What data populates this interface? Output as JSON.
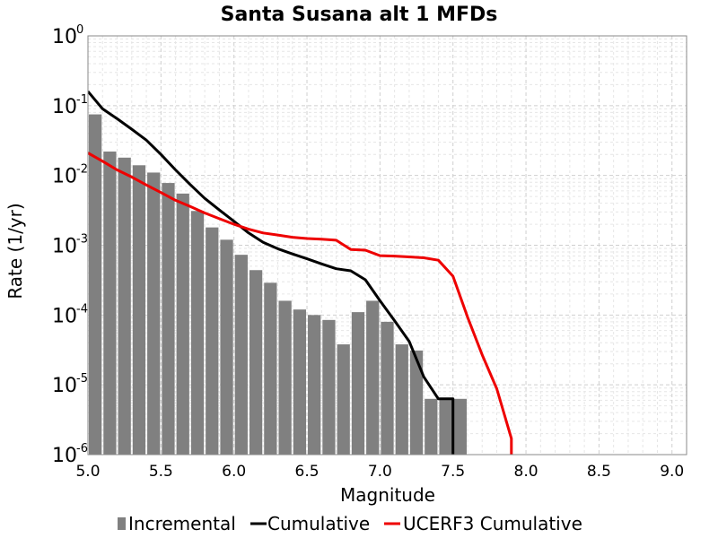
{
  "chart_data": {
    "type": "bar",
    "title": "Santa Susana alt 1 MFDs",
    "xlabel": "Magnitude",
    "ylabel": "Rate (1/yr)",
    "xlim": [
      5.0,
      9.1
    ],
    "ylim": [
      1e-06,
      1
    ],
    "y_scale": "log",
    "grid": true,
    "legend_position": "bottom",
    "x_ticks": [
      "5.0",
      "5.5",
      "6.0",
      "6.5",
      "7.0",
      "7.5",
      "8.0",
      "8.5",
      "9.0"
    ],
    "y_ticks": [
      {
        "base": "10",
        "exp": "0"
      },
      {
        "base": "10",
        "exp": "-1"
      },
      {
        "base": "10",
        "exp": "-2"
      },
      {
        "base": "10",
        "exp": "-3"
      },
      {
        "base": "10",
        "exp": "-4"
      },
      {
        "base": "10",
        "exp": "-5"
      },
      {
        "base": "10",
        "exp": "-6"
      }
    ],
    "series": [
      {
        "name": "Incremental",
        "kind": "bar",
        "color": "#808080",
        "bin_width": 0.1,
        "x": [
          5.05,
          5.15,
          5.25,
          5.35,
          5.45,
          5.55,
          5.65,
          5.75,
          5.85,
          5.95,
          6.05,
          6.15,
          6.25,
          6.35,
          6.45,
          6.55,
          6.65,
          6.75,
          6.85,
          6.95,
          7.05,
          7.15,
          7.25,
          7.35,
          7.45,
          7.55
        ],
        "y": [
          0.075,
          0.022,
          0.018,
          0.014,
          0.011,
          0.0078,
          0.0055,
          0.0031,
          0.0018,
          0.0012,
          0.00073,
          0.00044,
          0.00029,
          0.00016,
          0.00012,
          0.0001,
          8.5e-05,
          3.8e-05,
          0.00011,
          0.00016,
          8e-05,
          3.8e-05,
          3.1e-05,
          6.3e-06,
          6.3e-06,
          6.3e-06
        ]
      },
      {
        "name": "Cumulative",
        "kind": "line",
        "color": "#000000",
        "x": [
          5.0,
          5.1,
          5.2,
          5.3,
          5.4,
          5.5,
          5.6,
          5.7,
          5.8,
          5.9,
          6.0,
          6.1,
          6.2,
          6.3,
          6.4,
          6.5,
          6.6,
          6.7,
          6.8,
          6.9,
          7.0,
          7.1,
          7.2,
          7.3,
          7.4,
          7.5,
          7.5,
          7.5
        ],
        "y": [
          0.16,
          0.09,
          0.065,
          0.046,
          0.032,
          0.02,
          0.012,
          0.0074,
          0.0047,
          0.0032,
          0.0022,
          0.0015,
          0.0011,
          0.00089,
          0.00075,
          0.00064,
          0.00054,
          0.00046,
          0.00043,
          0.00032,
          0.00016,
          8.3e-05,
          4.2e-05,
          1.3e-05,
          6.3e-06,
          6.3e-06,
          6.3e-06,
          9.5e-07
        ]
      },
      {
        "name": "UCERF3 Cumulative",
        "kind": "line",
        "color": "#ee0000",
        "x": [
          5.0,
          5.1,
          5.2,
          5.3,
          5.4,
          5.5,
          5.6,
          5.7,
          5.8,
          5.9,
          6.0,
          6.1,
          6.2,
          6.3,
          6.4,
          6.5,
          6.6,
          6.7,
          6.8,
          6.9,
          7.0,
          7.1,
          7.2,
          7.3,
          7.4,
          7.5,
          7.6,
          7.7,
          7.8,
          7.9,
          7.9
        ],
        "y": [
          0.021,
          0.016,
          0.012,
          0.0095,
          0.0073,
          0.0057,
          0.0044,
          0.0036,
          0.0029,
          0.0024,
          0.002,
          0.0017,
          0.0015,
          0.0014,
          0.0013,
          0.00125,
          0.00122,
          0.00118,
          0.00087,
          0.00085,
          0.00071,
          0.0007,
          0.00068,
          0.00066,
          0.00061,
          0.00036,
          9.3e-05,
          2.7e-05,
          8.8e-06,
          1.7e-06,
          9.5e-07
        ]
      }
    ]
  }
}
